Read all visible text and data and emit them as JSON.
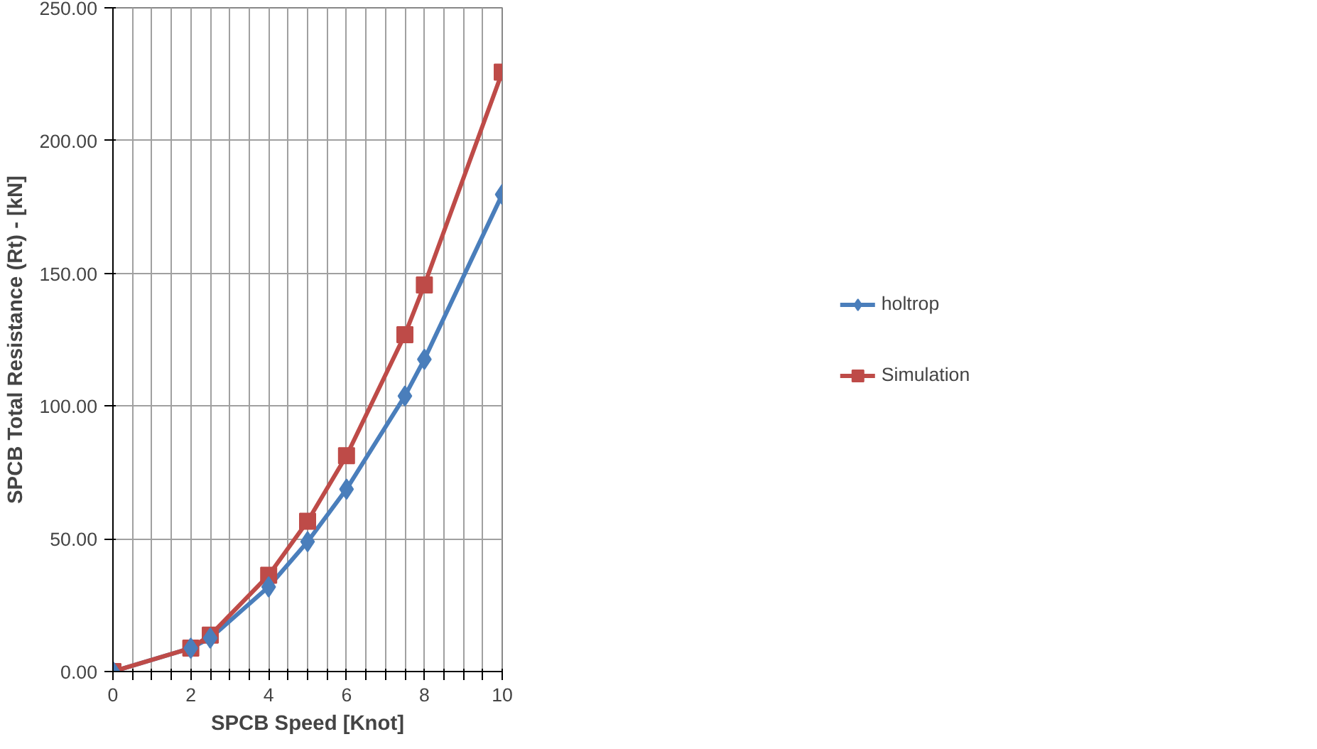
{
  "chart_data": {
    "type": "line",
    "xlabel": "SPCB Speed [Knot]",
    "ylabel": "SPCB Total Resistance (Rt) - [kN]",
    "x": [
      0,
      2,
      2.5,
      4,
      5,
      6,
      7.5,
      8,
      10
    ],
    "series": [
      {
        "name": "holtrop",
        "color": "#4a7ebb",
        "marker": "diamond",
        "values": [
          0,
          8.8,
          12.6,
          31.9,
          48.9,
          68.7,
          103.8,
          117.6,
          179.7
        ]
      },
      {
        "name": "Simulation",
        "color": "#be4b48",
        "marker": "square",
        "values": [
          0,
          8.8,
          13.7,
          36.3,
          56.6,
          81.3,
          126.9,
          145.6,
          225.8
        ]
      }
    ],
    "xlim": [
      0,
      10
    ],
    "ylim": [
      0,
      250
    ],
    "xticks": [
      0,
      {
        "value": 0.5,
        "label": null
      },
      {
        "value": 1,
        "label": null
      },
      {
        "value": 1.5,
        "label": null
      },
      2,
      {
        "value": 2.5,
        "label": null
      },
      {
        "value": 3,
        "label": null
      },
      {
        "value": 3.5,
        "label": null
      },
      4,
      {
        "value": 4.5,
        "label": null
      },
      {
        "value": 5,
        "label": null
      },
      {
        "value": 5.5,
        "label": null
      },
      6,
      {
        "value": 6.5,
        "label": null
      },
      {
        "value": 7,
        "label": null
      },
      {
        "value": 7.5,
        "label": null
      },
      8,
      {
        "value": 8.5,
        "label": null
      },
      {
        "value": 9,
        "label": null
      },
      {
        "value": 9.5,
        "label": null
      },
      10
    ],
    "yticks": [
      {
        "value": 0,
        "label": "0.00"
      },
      {
        "value": 50,
        "label": "50.00"
      },
      {
        "value": 100,
        "label": "100.00"
      },
      {
        "value": 150,
        "label": "150.00"
      },
      {
        "value": 200,
        "label": "200.00"
      },
      {
        "value": 250,
        "label": "250.00"
      }
    ],
    "grid": true,
    "legend": "right",
    "line_style": "solid"
  }
}
